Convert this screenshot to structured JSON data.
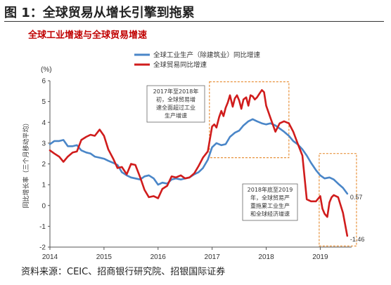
{
  "figure": {
    "title": "图 1：全球贸易从增长引擎到拖累",
    "source": "资料来源：CEIC、招商银行研究院、招银国际证券"
  },
  "chart_data": {
    "type": "line",
    "title": "全球工业增速与全球贸易增速",
    "unit": "(%)",
    "ylabel": "同比增长率（三个月移动平均）",
    "ylim": [
      -2,
      6
    ],
    "yticks": [
      "-2",
      "-1",
      "0",
      "1",
      "2",
      "3",
      "4",
      "5",
      "6"
    ],
    "xlim": [
      2014.0,
      2019.58
    ],
    "xticks": [
      "2014",
      "2015",
      "2016",
      "2017",
      "2018",
      "2019"
    ],
    "legend_position": "top-left",
    "series": [
      {
        "name": "全球工业生产（除建筑业）同比增速",
        "color": "#4a86c8",
        "end_label": "0.57",
        "x": [
          2014.0,
          2014.08,
          2014.17,
          2014.25,
          2014.33,
          2014.42,
          2014.5,
          2014.58,
          2014.67,
          2014.75,
          2014.83,
          2014.92,
          2015.0,
          2015.08,
          2015.17,
          2015.25,
          2015.33,
          2015.42,
          2015.5,
          2015.58,
          2015.67,
          2015.75,
          2015.83,
          2015.92,
          2016.0,
          2016.08,
          2016.17,
          2016.25,
          2016.33,
          2016.42,
          2016.5,
          2016.58,
          2016.67,
          2016.75,
          2016.83,
          2016.92,
          2017.0,
          2017.08,
          2017.17,
          2017.25,
          2017.33,
          2017.42,
          2017.5,
          2017.58,
          2017.67,
          2017.75,
          2017.83,
          2017.92,
          2018.0,
          2018.08,
          2018.17,
          2018.25,
          2018.33,
          2018.42,
          2018.5,
          2018.58,
          2018.67,
          2018.75,
          2018.83,
          2018.92,
          2019.0,
          2019.08,
          2019.17,
          2019.25,
          2019.33,
          2019.42,
          2019.5
        ],
        "y": [
          2.95,
          3.1,
          3.1,
          3.15,
          2.85,
          2.85,
          2.9,
          2.65,
          2.55,
          2.5,
          2.35,
          2.3,
          2.25,
          2.15,
          2.05,
          1.95,
          1.6,
          1.45,
          1.35,
          1.3,
          1.25,
          1.4,
          1.45,
          1.3,
          1.0,
          1.1,
          1.05,
          1.25,
          1.3,
          1.25,
          1.3,
          1.35,
          1.5,
          1.6,
          1.8,
          2.2,
          2.8,
          3.0,
          2.9,
          2.95,
          3.3,
          3.5,
          3.6,
          3.85,
          4.05,
          4.15,
          4.05,
          3.95,
          3.9,
          3.95,
          3.85,
          3.7,
          3.55,
          3.35,
          3.1,
          2.95,
          2.7,
          2.4,
          2.05,
          1.7,
          1.45,
          1.3,
          1.35,
          1.25,
          1.05,
          0.85,
          0.57
        ]
      },
      {
        "name": "全球贸易同比增速",
        "color": "#d01c1c",
        "end_label": "-1.46",
        "x": [
          2014.0,
          2014.08,
          2014.17,
          2014.25,
          2014.33,
          2014.42,
          2014.5,
          2014.58,
          2014.67,
          2014.75,
          2014.83,
          2014.92,
          2015.0,
          2015.08,
          2015.17,
          2015.25,
          2015.33,
          2015.42,
          2015.5,
          2015.58,
          2015.67,
          2015.75,
          2015.83,
          2015.92,
          2016.0,
          2016.08,
          2016.17,
          2016.25,
          2016.33,
          2016.42,
          2016.5,
          2016.58,
          2016.67,
          2016.75,
          2016.83,
          2016.92,
          2017.0,
          2017.04,
          2017.08,
          2017.13,
          2017.17,
          2017.21,
          2017.25,
          2017.29,
          2017.33,
          2017.38,
          2017.42,
          2017.46,
          2017.5,
          2017.54,
          2017.58,
          2017.63,
          2017.67,
          2017.71,
          2017.75,
          2017.79,
          2017.83,
          2017.88,
          2017.92,
          2017.96,
          2018.0,
          2018.08,
          2018.17,
          2018.25,
          2018.33,
          2018.42,
          2018.5,
          2018.58,
          2018.67,
          2018.75,
          2018.83,
          2018.92,
          2019.0,
          2019.04,
          2019.08,
          2019.13,
          2019.17,
          2019.21,
          2019.25,
          2019.33,
          2019.42,
          2019.5
        ],
        "y": [
          2.65,
          2.5,
          2.35,
          2.1,
          2.35,
          2.55,
          2.6,
          3.15,
          3.3,
          3.4,
          3.35,
          3.65,
          3.35,
          2.7,
          2.25,
          1.8,
          1.85,
          1.5,
          2.0,
          1.95,
          1.35,
          0.75,
          0.4,
          0.45,
          0.35,
          0.8,
          0.95,
          1.4,
          1.35,
          1.45,
          1.3,
          1.35,
          1.55,
          1.9,
          2.3,
          2.6,
          3.8,
          3.9,
          3.75,
          4.25,
          4.55,
          4.3,
          4.7,
          4.95,
          5.3,
          4.75,
          5.15,
          5.3,
          5.05,
          4.65,
          5.1,
          5.2,
          4.8,
          5.3,
          5.25,
          5.1,
          5.2,
          5.4,
          5.55,
          5.45,
          4.8,
          4.2,
          3.55,
          3.95,
          4.05,
          3.95,
          3.55,
          3.0,
          2.4,
          0.3,
          0.2,
          0.2,
          0.45,
          -0.15,
          -0.4,
          -0.55,
          0.15,
          0.4,
          0.5,
          0.4,
          -0.35,
          -1.46
        ]
      }
    ],
    "annotations": [
      {
        "lines": [
          "2017年至2018年",
          "初，全球贸易增",
          "速全面超过工业",
          "生产增速"
        ]
      },
      {
        "lines": [
          "2018年底至2019",
          "年，全球贸易严",
          "重拖累工业生产",
          "和全球经济增速"
        ]
      }
    ]
  }
}
